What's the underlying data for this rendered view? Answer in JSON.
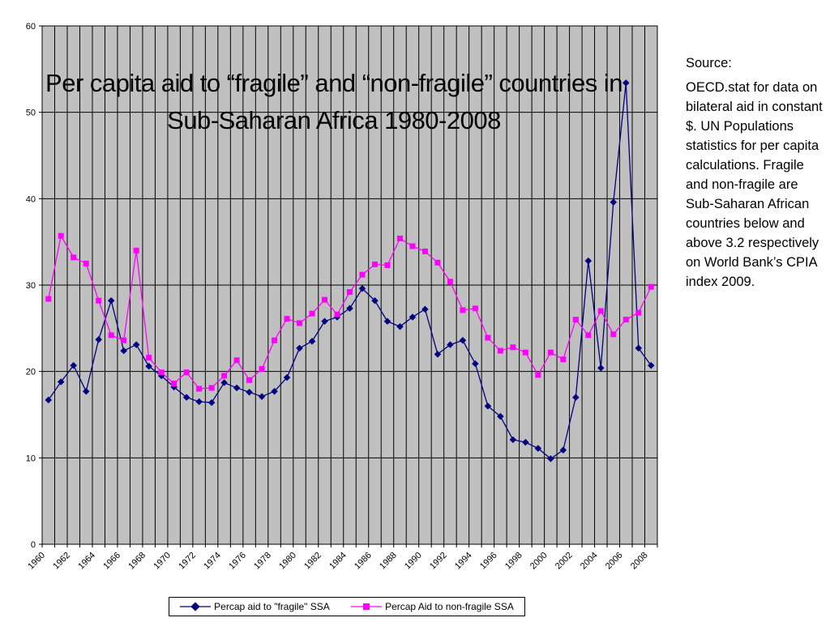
{
  "title": "Per capita aid to “fragile” and “non-fragile” countries in Sub-Saharan Africa 1980-2008",
  "source": {
    "heading": "Source:",
    "body": "OECD.stat for data on bilateral aid in constant $. UN Populations statistics for per capita calculations. Fragile and non-fragile are Sub-Saharan African countries below and above 3.2 respectively on World Bank’s CPIA index 2009."
  },
  "chart_data": {
    "type": "line",
    "title": "Per capita aid to “fragile” and “non-fragile” countries in Sub-Saharan Africa 1980-2008",
    "xlabel": "",
    "ylabel": "",
    "ylim": [
      0,
      60
    ],
    "yticks": [
      0,
      10,
      20,
      30,
      40,
      50,
      60
    ],
    "grid": true,
    "legend_position": "bottom",
    "x": [
      1960,
      1961,
      1962,
      1963,
      1964,
      1965,
      1966,
      1967,
      1968,
      1969,
      1970,
      1971,
      1972,
      1973,
      1974,
      1975,
      1976,
      1977,
      1978,
      1979,
      1980,
      1981,
      1982,
      1983,
      1984,
      1985,
      1986,
      1987,
      1988,
      1989,
      1990,
      1991,
      1992,
      1993,
      1994,
      1995,
      1996,
      1997,
      1998,
      1999,
      2000,
      2001,
      2002,
      2003,
      2004,
      2005,
      2006,
      2007,
      2008
    ],
    "xtick_labels": [
      "1960",
      "1962",
      "1964",
      "1966",
      "1968",
      "1970",
      "1972",
      "1974",
      "1976",
      "1978",
      "1980",
      "1982",
      "1984",
      "1986",
      "1988",
      "1990",
      "1992",
      "1994",
      "1996",
      "1998",
      "2000",
      "2002",
      "2004",
      "2006",
      "2008"
    ],
    "series": [
      {
        "name": "Percap aid to \"fragile\" SSA",
        "color": "#000080",
        "marker": "diamond",
        "values": [
          16.7,
          18.8,
          20.7,
          17.7,
          23.7,
          28.2,
          22.4,
          23.1,
          20.6,
          19.5,
          18.2,
          17.0,
          16.5,
          16.4,
          18.7,
          18.1,
          17.6,
          17.1,
          17.7,
          19.3,
          22.7,
          23.5,
          25.8,
          26.3,
          27.3,
          29.6,
          28.2,
          25.8,
          25.2,
          26.3,
          27.2,
          22.0,
          23.1,
          23.6,
          20.9,
          16.0,
          14.8,
          12.1,
          11.8,
          11.1,
          9.9,
          10.9,
          17.0,
          32.8,
          20.4,
          39.6,
          53.4,
          22.7,
          20.7
        ]
      },
      {
        "name": "Percap Aid to non-fragile SSA",
        "color": "#ff00ff",
        "marker": "square",
        "values": [
          28.4,
          35.7,
          33.2,
          32.5,
          28.2,
          24.2,
          23.6,
          34.0,
          21.6,
          19.9,
          18.6,
          19.9,
          18.0,
          18.1,
          19.5,
          21.3,
          19.0,
          20.3,
          23.6,
          26.1,
          25.6,
          26.7,
          28.3,
          26.6,
          29.2,
          31.2,
          32.4,
          32.3,
          35.4,
          34.5,
          33.9,
          32.6,
          30.4,
          27.1,
          27.3,
          23.9,
          22.4,
          22.8,
          22.2,
          19.6,
          22.2,
          21.4,
          26.0,
          24.2,
          27.0,
          24.3,
          26.0,
          26.8,
          29.8
        ]
      }
    ]
  }
}
